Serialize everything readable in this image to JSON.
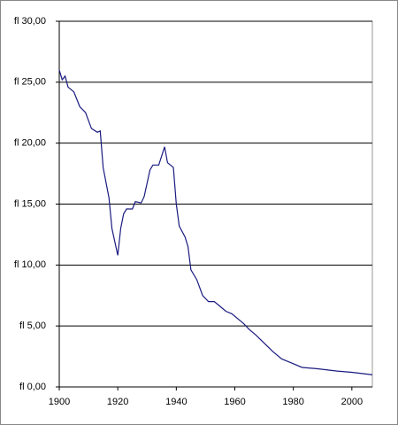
{
  "chart_data": {
    "type": "line",
    "x": [
      1900,
      1901,
      1902,
      1903,
      1905,
      1907,
      1909,
      1911,
      1913,
      1914,
      1915,
      1917,
      1918,
      1920,
      1921,
      1922,
      1923,
      1925,
      1926,
      1928,
      1929,
      1931,
      1932,
      1934,
      1936,
      1937,
      1939,
      1940,
      1941,
      1943,
      1944,
      1945,
      1947,
      1949,
      1951,
      1953,
      1955,
      1957,
      1959,
      1961,
      1963,
      1965,
      1967,
      1970,
      1973,
      1976,
      1980,
      1983,
      1988,
      1995,
      2000,
      2007
    ],
    "series": [
      {
        "color": "#1a1a80",
        "values": [
          26.0,
          25.2,
          25.5,
          24.6,
          24.2,
          23.0,
          22.5,
          21.2,
          20.9,
          21.0,
          18.0,
          15.5,
          13.0,
          10.8,
          13.0,
          14.2,
          14.6,
          14.6,
          15.2,
          15.1,
          15.6,
          17.8,
          18.2,
          18.2,
          19.7,
          18.4,
          18.0,
          15.0,
          13.2,
          12.3,
          11.5,
          9.6,
          8.8,
          7.5,
          7.0,
          7.0,
          6.6,
          6.2,
          6.0,
          5.6,
          5.2,
          4.7,
          4.3,
          3.6,
          2.9,
          2.3,
          1.9,
          1.6,
          1.5,
          1.3,
          1.2,
          1.0
        ]
      }
    ],
    "xlim": [
      1900,
      2007
    ],
    "xticks": [
      1900,
      1920,
      1940,
      1960,
      1980,
      2000
    ],
    "ylim": [
      0,
      30
    ],
    "yticks": [
      {
        "value": 0,
        "label": "fl 0,00"
      },
      {
        "value": 5,
        "label": "fl 5,00"
      },
      {
        "value": 10,
        "label": "fl 10,00"
      },
      {
        "value": 15,
        "label": "fl 15,00"
      },
      {
        "value": 20,
        "label": "fl 20,00"
      },
      {
        "value": 25,
        "label": "fl 25,00"
      },
      {
        "value": 30,
        "label": "fl 30,00"
      }
    ],
    "grid": true
  }
}
